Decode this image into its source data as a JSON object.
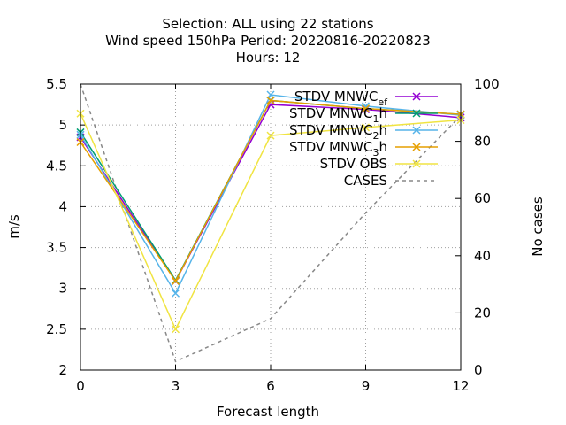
{
  "chart_data": {
    "type": "line",
    "title_lines": [
      "Selection: ALL using    22 stations",
      "Wind speed 150hPa   Period: 20220816-20220823",
      "Hours:  12"
    ],
    "xlabel": "Forecast length",
    "ylabel": "m/s",
    "y2label": "No cases",
    "x": [
      0,
      3,
      6,
      9,
      12
    ],
    "xlim": [
      0,
      12
    ],
    "ylim": [
      2,
      5.5
    ],
    "y2lim": [
      0,
      100
    ],
    "x_ticks": [
      "0",
      "3",
      "6",
      "9",
      "12"
    ],
    "y_ticks": [
      "2",
      "2.5",
      "3",
      "3.5",
      "4",
      "4.5",
      "5",
      "5.5"
    ],
    "y2_ticks": [
      "0",
      "20",
      "40",
      "60",
      "80",
      "100"
    ],
    "grid": true,
    "legend_position": "top-right",
    "series": [
      {
        "name": "STDV MNWC_ef",
        "label_main": "STDV MNWC",
        "label_sub": "ef",
        "axis": "y",
        "color": "#9400d3",
        "marker": "x",
        "values": [
          4.85,
          3.09,
          5.25,
          5.19,
          5.09
        ]
      },
      {
        "name": "STDV MNWC_1h",
        "label_main": "STDV MNWC",
        "label_sub": "1",
        "label_tail": "h",
        "axis": "y",
        "color": "#009e73",
        "marker": "x",
        "values": [
          4.91,
          3.1,
          5.3,
          5.2,
          5.13
        ]
      },
      {
        "name": "STDV MNWC_2h",
        "label_main": "STDV MNWC",
        "label_sub": "2",
        "label_tail": "h",
        "axis": "y",
        "color": "#56b4e9",
        "marker": "x",
        "values": [
          4.88,
          2.94,
          5.37,
          5.23,
          5.12
        ]
      },
      {
        "name": "STDV MNWC_3h",
        "label_main": "STDV MNWC",
        "label_sub": "3",
        "label_tail": "h",
        "axis": "y",
        "color": "#e69f00",
        "marker": "x",
        "values": [
          4.79,
          3.09,
          5.3,
          5.2,
          5.13
        ]
      },
      {
        "name": "STDV OBS",
        "label_main": "STDV OBS",
        "axis": "y",
        "color": "#f0e442",
        "marker": "x",
        "values": [
          5.14,
          2.5,
          4.87,
          4.97,
          5.06
        ]
      },
      {
        "name": "CASES",
        "label_main": "CASES",
        "axis": "y2",
        "color": "#888888",
        "dashed": true,
        "values": [
          100,
          3,
          18,
          55,
          89
        ]
      }
    ]
  }
}
